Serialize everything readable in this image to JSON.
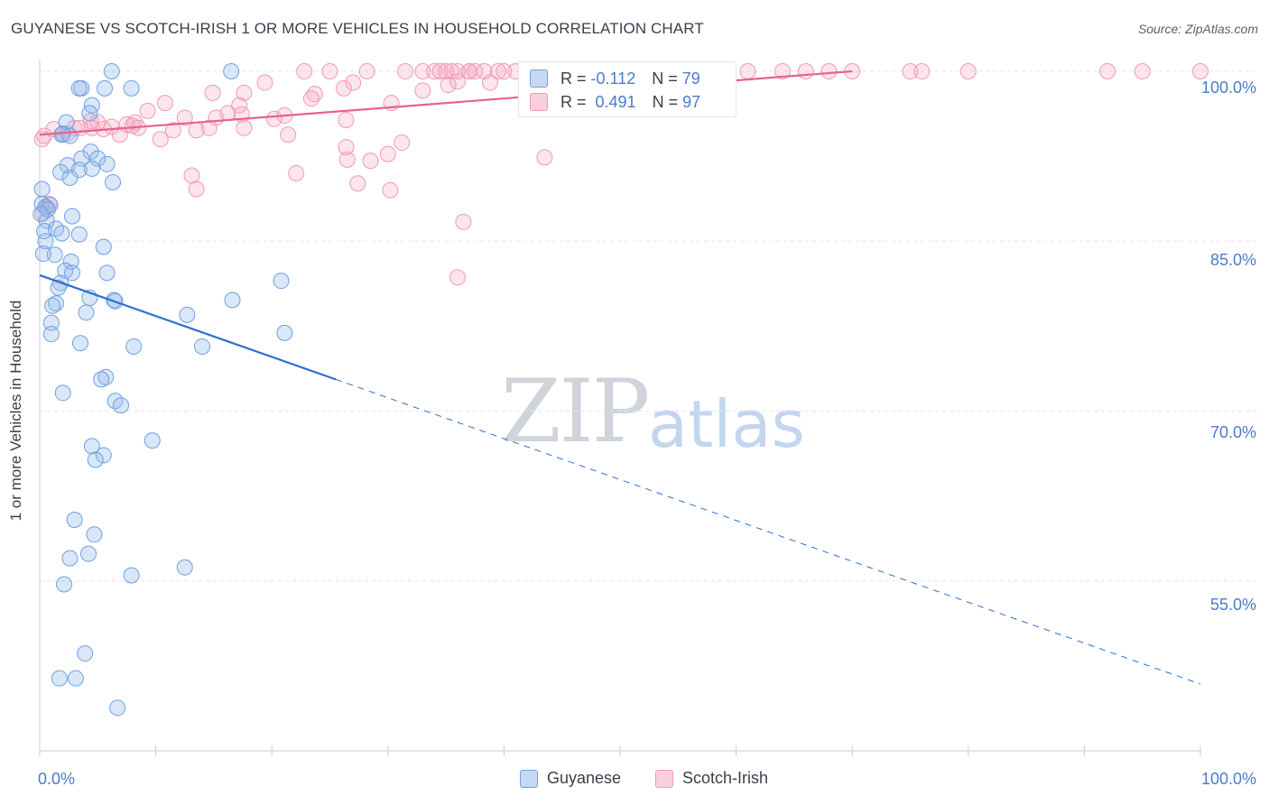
{
  "title": "GUYANESE VS SCOTCH-IRISH 1 OR MORE VEHICLES IN HOUSEHOLD CORRELATION CHART",
  "source": "Source: ZipAtlas.com",
  "watermark": {
    "zip": "ZIP",
    "atlas": "atlas"
  },
  "colors": {
    "guyanese": "#6fa0e0",
    "scotch_irish": "#f09ab4",
    "guyanese_line": "#2c6fd1",
    "scotch_irish_line": "#e8628c",
    "tick": "#4a7cc9"
  },
  "stats": {
    "r_label": "R =",
    "n_label": "N =",
    "guyanese": {
      "r": "-0.112",
      "n": "79"
    },
    "scotch_irish": {
      "r": "0.491",
      "n": "97"
    }
  },
  "legend": {
    "guyanese": "Guyanese",
    "scotch_irish": "Scotch-Irish"
  },
  "chart_data": {
    "type": "scatter",
    "title": "GUYANESE VS SCOTCH-IRISH 1 OR MORE VEHICLES IN HOUSEHOLD CORRELATION CHART",
    "xlabel": "",
    "ylabel": "1 or more Vehicles in Household",
    "xlim": [
      0,
      100
    ],
    "ylim": [
      40,
      100
    ],
    "x_tick_labels": {
      "min": "0.0%",
      "max": "100.0%"
    },
    "y_tick_labels": [
      "100.0%",
      "85.0%",
      "70.0%",
      "55.0%"
    ],
    "y_ticks": [
      100,
      85,
      70,
      55
    ],
    "series": [
      {
        "name": "Guyanese",
        "trend": {
          "x0": 0,
          "y0": 82.0,
          "x1": 25.5,
          "y1": 72.8,
          "extend_to_x": 100,
          "extend_to_y": 45.9
        },
        "points": [
          [
            6.2,
            100
          ],
          [
            16.5,
            100
          ],
          [
            3.6,
            98.5
          ],
          [
            5.6,
            98.5
          ],
          [
            7.9,
            98.5
          ],
          [
            3.4,
            98.5
          ],
          [
            4.5,
            97.0
          ],
          [
            4.3,
            96.3
          ],
          [
            2.3,
            95.5
          ],
          [
            2.0,
            94.5
          ],
          [
            1.9,
            94.4
          ],
          [
            2.6,
            94.3
          ],
          [
            4.4,
            92.9
          ],
          [
            3.6,
            92.3
          ],
          [
            5.0,
            92.3
          ],
          [
            5.8,
            91.8
          ],
          [
            2.4,
            91.7
          ],
          [
            3.4,
            91.3
          ],
          [
            4.5,
            91.4
          ],
          [
            1.8,
            91.1
          ],
          [
            2.6,
            90.6
          ],
          [
            6.3,
            90.2
          ],
          [
            0.2,
            89.6
          ],
          [
            0.2,
            88.3
          ],
          [
            0.9,
            88.2
          ],
          [
            0.5,
            88.0
          ],
          [
            0.7,
            87.8
          ],
          [
            2.8,
            87.2
          ],
          [
            0.6,
            86.8
          ],
          [
            0.4,
            85.9
          ],
          [
            1.4,
            86.1
          ],
          [
            1.9,
            85.7
          ],
          [
            3.4,
            85.6
          ],
          [
            0.5,
            85.0
          ],
          [
            5.5,
            84.5
          ],
          [
            1.3,
            83.8
          ],
          [
            2.7,
            83.2
          ],
          [
            2.2,
            82.4
          ],
          [
            2.8,
            82.2
          ],
          [
            5.8,
            82.2
          ],
          [
            20.8,
            81.5
          ],
          [
            1.8,
            81.3
          ],
          [
            1.6,
            80.9
          ],
          [
            4.3,
            80.0
          ],
          [
            6.4,
            79.8
          ],
          [
            16.6,
            79.8
          ],
          [
            6.5,
            79.7
          ],
          [
            1.4,
            79.5
          ],
          [
            1.1,
            79.3
          ],
          [
            4.0,
            78.7
          ],
          [
            12.7,
            78.5
          ],
          [
            1.0,
            77.8
          ],
          [
            21.1,
            76.9
          ],
          [
            1.0,
            76.8
          ],
          [
            3.5,
            76.0
          ],
          [
            8.1,
            75.7
          ],
          [
            14.0,
            75.7
          ],
          [
            5.7,
            73.0
          ],
          [
            5.3,
            72.8
          ],
          [
            2.0,
            71.6
          ],
          [
            6.5,
            70.9
          ],
          [
            7.0,
            70.5
          ],
          [
            9.7,
            67.4
          ],
          [
            4.5,
            66.9
          ],
          [
            5.5,
            66.1
          ],
          [
            4.8,
            65.7
          ],
          [
            3.0,
            60.4
          ],
          [
            4.7,
            59.1
          ],
          [
            4.2,
            57.4
          ],
          [
            2.6,
            57.0
          ],
          [
            12.5,
            56.2
          ],
          [
            7.9,
            55.5
          ],
          [
            2.1,
            54.7
          ],
          [
            3.9,
            48.6
          ],
          [
            1.7,
            46.4
          ],
          [
            3.1,
            46.4
          ],
          [
            6.7,
            43.8
          ],
          [
            0.3,
            83.9
          ],
          [
            0.1,
            87.4
          ]
        ]
      },
      {
        "name": "Scotch-Irish",
        "trend": {
          "x0": 0,
          "y0": 94.4,
          "x1": 70,
          "y1": 100
        },
        "points": [
          [
            22.8,
            100
          ],
          [
            25.0,
            100
          ],
          [
            28.2,
            100
          ],
          [
            31.5,
            100
          ],
          [
            33.0,
            100
          ],
          [
            34.0,
            100
          ],
          [
            37.0,
            100
          ],
          [
            37.5,
            100
          ],
          [
            39.5,
            100
          ],
          [
            41.0,
            100
          ],
          [
            42.0,
            100
          ],
          [
            43.0,
            100
          ],
          [
            47.0,
            100
          ],
          [
            50.0,
            100
          ],
          [
            55.0,
            100
          ],
          [
            61.0,
            100
          ],
          [
            64.0,
            100
          ],
          [
            66.0,
            100
          ],
          [
            68.0,
            100
          ],
          [
            70.0,
            100
          ],
          [
            75.0,
            100
          ],
          [
            76.0,
            100
          ],
          [
            80.0,
            100
          ],
          [
            92.0,
            100
          ],
          [
            95.0,
            100
          ],
          [
            100.0,
            100
          ],
          [
            38.3,
            100
          ],
          [
            35.0,
            100
          ],
          [
            36.0,
            100
          ],
          [
            40.0,
            100
          ],
          [
            42.5,
            100
          ],
          [
            44.0,
            100
          ],
          [
            34.5,
            100
          ],
          [
            35.5,
            100
          ],
          [
            45.0,
            100
          ],
          [
            37.0,
            100
          ],
          [
            27.0,
            99.0
          ],
          [
            36.0,
            99.1
          ],
          [
            35.2,
            98.8
          ],
          [
            33.0,
            98.3
          ],
          [
            19.4,
            99.0
          ],
          [
            26.2,
            98.5
          ],
          [
            14.9,
            98.1
          ],
          [
            17.6,
            98.1
          ],
          [
            23.7,
            98.0
          ],
          [
            23.4,
            97.6
          ],
          [
            10.8,
            97.2
          ],
          [
            17.2,
            97.0
          ],
          [
            30.3,
            97.2
          ],
          [
            9.3,
            96.5
          ],
          [
            17.4,
            96.2
          ],
          [
            16.2,
            96.3
          ],
          [
            21.1,
            96.1
          ],
          [
            12.5,
            95.9
          ],
          [
            15.2,
            95.9
          ],
          [
            20.2,
            95.8
          ],
          [
            26.4,
            95.7
          ],
          [
            8.2,
            95.5
          ],
          [
            4.4,
            95.6
          ],
          [
            5.0,
            95.5
          ],
          [
            7.5,
            95.3
          ],
          [
            6.2,
            95.1
          ],
          [
            8.5,
            95.0
          ],
          [
            3.0,
            95.0
          ],
          [
            4.5,
            95.0
          ],
          [
            11.5,
            94.8
          ],
          [
            1.9,
            94.4
          ],
          [
            2.4,
            94.5
          ],
          [
            5.5,
            94.9
          ],
          [
            13.5,
            94.8
          ],
          [
            14.6,
            95.0
          ],
          [
            17.6,
            95.0
          ],
          [
            21.4,
            94.4
          ],
          [
            6.9,
            94.4
          ],
          [
            10.4,
            94.0
          ],
          [
            0.2,
            94.0
          ],
          [
            31.2,
            93.7
          ],
          [
            26.4,
            93.3
          ],
          [
            30.0,
            92.7
          ],
          [
            43.5,
            92.4
          ],
          [
            26.5,
            92.2
          ],
          [
            28.5,
            92.1
          ],
          [
            22.1,
            91.0
          ],
          [
            13.1,
            90.8
          ],
          [
            27.4,
            90.1
          ],
          [
            30.2,
            89.5
          ],
          [
            13.5,
            89.6
          ],
          [
            36.5,
            86.7
          ],
          [
            36.0,
            81.8
          ],
          [
            0.4,
            94.3
          ],
          [
            0.6,
            88.0
          ],
          [
            0.3,
            87.5
          ],
          [
            0.8,
            88.3
          ],
          [
            1.2,
            94.9
          ],
          [
            3.5,
            95.0
          ],
          [
            8.0,
            95.2
          ],
          [
            38.8,
            99.0
          ]
        ]
      }
    ]
  }
}
